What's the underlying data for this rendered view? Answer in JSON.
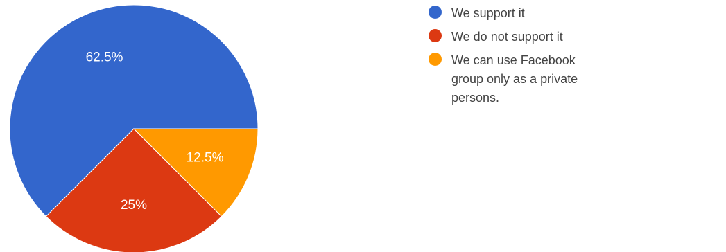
{
  "chart_data": {
    "type": "pie",
    "slices": [
      {
        "label": "We support it",
        "value": 62.5,
        "display": "62.5%",
        "color": "#3366cc"
      },
      {
        "label": "We do not support it",
        "value": 25,
        "display": "25%",
        "color": "#dc3912"
      },
      {
        "label": "We can use Facebook group only as a private persons.",
        "value": 12.5,
        "display": "12.5%",
        "color": "#ff9900"
      }
    ],
    "legend_position": "right"
  }
}
